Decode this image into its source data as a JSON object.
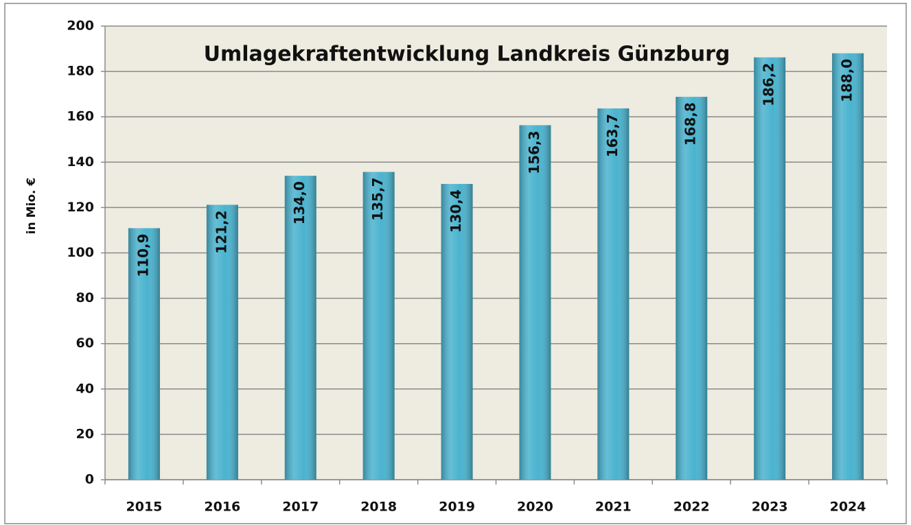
{
  "chart_data": {
    "type": "bar",
    "title": "Umlagekraftentwicklung Landkreis Günzburg",
    "y_label": "in Mio. €",
    "categories": [
      "2015",
      "2016",
      "2017",
      "2018",
      "2019",
      "2020",
      "2021",
      "2022",
      "2023",
      "2024"
    ],
    "values": [
      110.9,
      121.2,
      134.0,
      135.7,
      130.4,
      156.3,
      163.7,
      168.8,
      186.2,
      188.0
    ],
    "value_labels": [
      "110,9",
      "121,2",
      "134,0",
      "135,7",
      "130,4",
      "156,3",
      "163,7",
      "168,8",
      "186,2",
      "188,0"
    ],
    "color": "#4ab3cf",
    "ylim": [
      0,
      200
    ],
    "yticks": [
      0,
      20,
      40,
      60,
      80,
      100,
      120,
      140,
      160,
      180,
      200
    ],
    "grid": true
  }
}
